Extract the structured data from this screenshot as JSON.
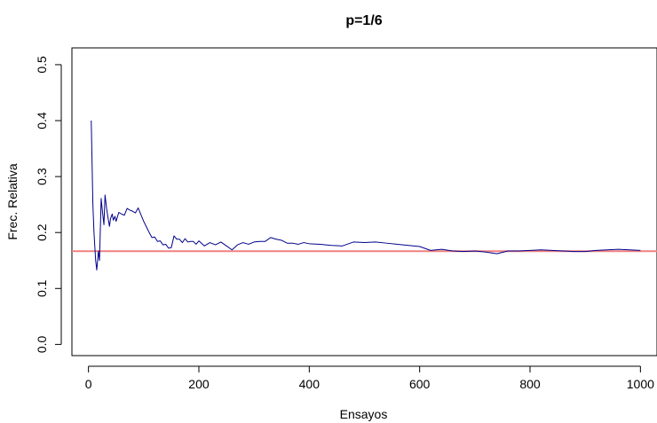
{
  "chart_data": {
    "type": "line",
    "title": "p=1/6",
    "xlabel": "Ensayos",
    "ylabel": "Frec. Relativa",
    "xlim": [
      -30,
      1030
    ],
    "ylim": [
      -0.02,
      0.53
    ],
    "xticks": [
      0,
      200,
      400,
      600,
      800,
      1000
    ],
    "xtick_labels": [
      "0",
      "200",
      "400",
      "600",
      "800",
      "1000"
    ],
    "yticks": [
      0.0,
      0.1,
      0.2,
      0.3,
      0.4,
      0.5
    ],
    "ytick_labels": [
      "0.0",
      "0.1",
      "0.2",
      "0.3",
      "0.4",
      "0.5"
    ],
    "grid": false,
    "reference_line": {
      "y": 0.1667,
      "color": "#f08080"
    },
    "series": [
      {
        "color": "#00008b",
        "x": [
          5,
          8,
          10,
          13,
          15,
          18,
          20,
          23,
          25,
          28,
          30,
          33,
          35,
          38,
          40,
          43,
          45,
          48,
          50,
          55,
          60,
          65,
          70,
          75,
          80,
          85,
          90,
          95,
          100,
          105,
          110,
          115,
          120,
          125,
          130,
          135,
          140,
          145,
          150,
          155,
          160,
          165,
          170,
          175,
          180,
          185,
          190,
          195,
          200,
          210,
          220,
          230,
          240,
          250,
          260,
          270,
          280,
          290,
          300,
          310,
          320,
          330,
          340,
          350,
          360,
          370,
          380,
          390,
          400,
          420,
          440,
          460,
          480,
          500,
          520,
          540,
          560,
          580,
          600,
          620,
          640,
          660,
          680,
          700,
          720,
          740,
          760,
          780,
          800,
          820,
          840,
          860,
          880,
          900,
          920,
          940,
          960,
          980,
          1000
        ],
        "y": [
          0.4,
          0.25,
          0.2,
          0.15,
          0.133,
          0.167,
          0.15,
          0.261,
          0.24,
          0.214,
          0.267,
          0.242,
          0.229,
          0.211,
          0.225,
          0.233,
          0.222,
          0.229,
          0.22,
          0.236,
          0.233,
          0.231,
          0.243,
          0.24,
          0.238,
          0.235,
          0.244,
          0.232,
          0.22,
          0.21,
          0.2,
          0.191,
          0.192,
          0.184,
          0.185,
          0.178,
          0.179,
          0.172,
          0.173,
          0.194,
          0.188,
          0.188,
          0.182,
          0.189,
          0.183,
          0.184,
          0.184,
          0.179,
          0.185,
          0.176,
          0.182,
          0.178,
          0.183,
          0.176,
          0.169,
          0.178,
          0.182,
          0.179,
          0.183,
          0.184,
          0.184,
          0.191,
          0.188,
          0.186,
          0.181,
          0.181,
          0.179,
          0.182,
          0.18,
          0.179,
          0.177,
          0.176,
          0.183,
          0.182,
          0.183,
          0.181,
          0.179,
          0.177,
          0.175,
          0.168,
          0.17,
          0.167,
          0.166,
          0.167,
          0.165,
          0.162,
          0.167,
          0.167,
          0.168,
          0.169,
          0.168,
          0.167,
          0.166,
          0.166,
          0.168,
          0.169,
          0.17,
          0.169,
          0.168
        ]
      }
    ]
  }
}
